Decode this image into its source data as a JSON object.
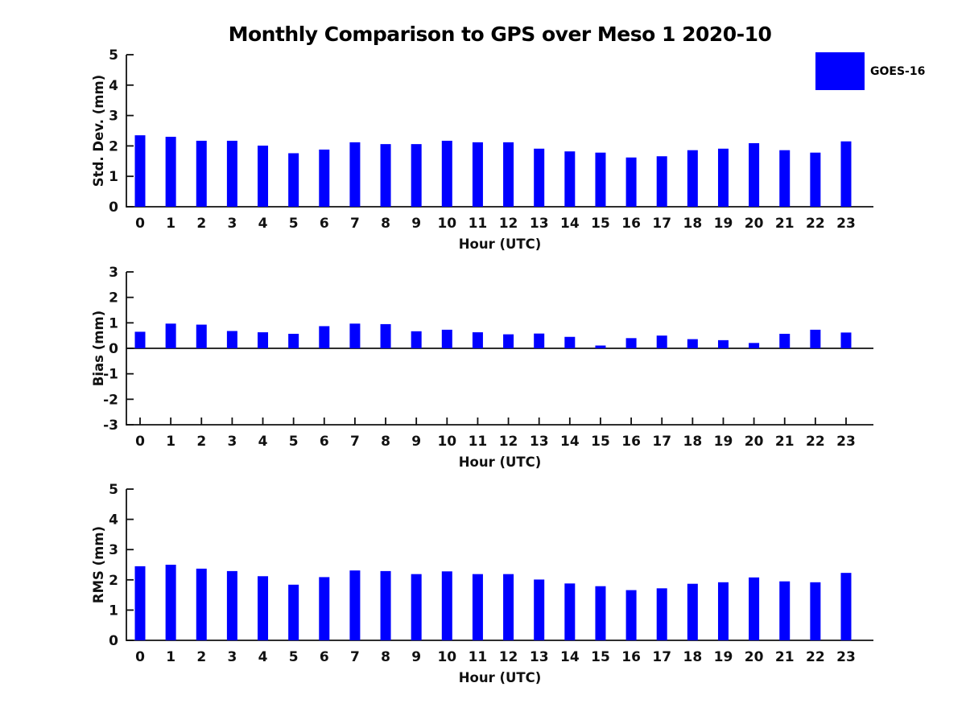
{
  "figure": {
    "title": "Monthly Comparison to GPS over Meso 1 2020-10",
    "legend": {
      "label": "GOES-16",
      "color": "#0000FF"
    }
  },
  "chart_data": [
    {
      "type": "bar",
      "title": "Monthly Comparison to GPS over Meso 1 2020-10",
      "ylabel": "Std. Dev. (mm)",
      "xlabel": "Hour (UTC)",
      "categories": [
        "0",
        "1",
        "2",
        "3",
        "4",
        "5",
        "6",
        "7",
        "8",
        "9",
        "10",
        "11",
        "12",
        "13",
        "14",
        "15",
        "16",
        "17",
        "18",
        "19",
        "20",
        "21",
        "22",
        "23"
      ],
      "values": [
        2.35,
        2.3,
        2.17,
        2.17,
        2.01,
        1.76,
        1.88,
        2.12,
        2.06,
        2.06,
        2.17,
        2.12,
        2.12,
        1.91,
        1.82,
        1.78,
        1.62,
        1.66,
        1.86,
        1.91,
        2.09,
        1.86,
        1.78,
        2.15
      ],
      "ylim": [
        0,
        5
      ],
      "yticks": [
        0,
        1,
        2,
        3,
        4,
        5
      ],
      "bar_color": "#0000FF",
      "legend": [
        "GOES-16"
      ],
      "grid": false,
      "legend_position": "top-right-outside"
    },
    {
      "type": "bar",
      "title": "",
      "ylabel": "Bias (mm)",
      "xlabel": "Hour (UTC)",
      "categories": [
        "0",
        "1",
        "2",
        "3",
        "4",
        "5",
        "6",
        "7",
        "8",
        "9",
        "10",
        "11",
        "12",
        "13",
        "14",
        "15",
        "16",
        "17",
        "18",
        "19",
        "20",
        "21",
        "22",
        "23"
      ],
      "values": [
        0.65,
        0.97,
        0.93,
        0.68,
        0.63,
        0.57,
        0.87,
        0.97,
        0.95,
        0.67,
        0.73,
        0.63,
        0.55,
        0.58,
        0.45,
        0.11,
        0.4,
        0.5,
        0.36,
        0.32,
        0.21,
        0.57,
        0.73,
        0.62
      ],
      "ylim": [
        -3,
        3
      ],
      "yticks": [
        -3,
        -2,
        -1,
        0,
        1,
        2,
        3
      ],
      "bar_color": "#0000FF",
      "legend": [
        "GOES-16"
      ],
      "grid": false,
      "legend_position": "none"
    },
    {
      "type": "bar",
      "title": "",
      "ylabel": "RMS (mm)",
      "xlabel": "Hour (UTC)",
      "categories": [
        "0",
        "1",
        "2",
        "3",
        "4",
        "5",
        "6",
        "7",
        "8",
        "9",
        "10",
        "11",
        "12",
        "13",
        "14",
        "15",
        "16",
        "17",
        "18",
        "19",
        "20",
        "21",
        "22",
        "23"
      ],
      "values": [
        2.45,
        2.5,
        2.37,
        2.29,
        2.12,
        1.84,
        2.09,
        2.31,
        2.29,
        2.19,
        2.28,
        2.19,
        2.19,
        2.01,
        1.88,
        1.79,
        1.66,
        1.72,
        1.87,
        1.92,
        2.08,
        1.95,
        1.92,
        2.23
      ],
      "ylim": [
        0,
        5
      ],
      "yticks": [
        0,
        1,
        2,
        3,
        4,
        5
      ],
      "bar_color": "#0000FF",
      "legend": [
        "GOES-16"
      ],
      "grid": false,
      "legend_position": "none"
    }
  ]
}
